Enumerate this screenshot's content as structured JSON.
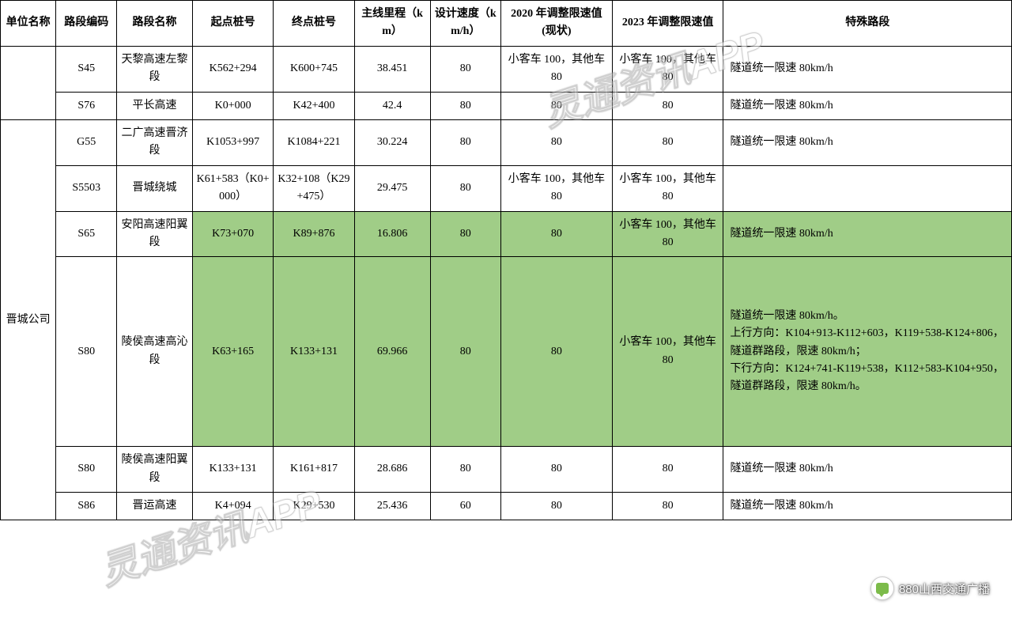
{
  "columns": {
    "unit": "单位名称",
    "code": "路段编码",
    "name": "路段名称",
    "start": "起点桩号",
    "end": "终点桩号",
    "length": "主线里程（km）",
    "design_speed": "设计速度（km/h）",
    "limit2020": "2020 年调整限速值(现状)",
    "limit2023": "2023 年调整限速值",
    "special": "特殊路段"
  },
  "widths_pct": [
    5.5,
    6.0,
    7.5,
    8.0,
    8.0,
    7.5,
    7.0,
    11.0,
    11.0,
    28.5
  ],
  "groups": [
    {
      "unit": "",
      "rows": [
        {
          "code": "S45",
          "name": "天黎高速左黎段",
          "start": "K562+294",
          "end": "K600+745",
          "length": "38.451",
          "design_speed": "80",
          "limit2020": "小客车 100，其他车 80",
          "limit2023": "小客车 100，其他车 80",
          "special": "隧道统一限速 80km/h",
          "highlight": []
        },
        {
          "code": "S76",
          "name": "平长高速",
          "start": "K0+000",
          "end": "K42+400",
          "length": "42.4",
          "design_speed": "80",
          "limit2020": "80",
          "limit2023": "80",
          "special": "隧道统一限速 80km/h",
          "highlight": []
        }
      ]
    },
    {
      "unit": "晋城公司",
      "rows": [
        {
          "code": "G55",
          "name": "二广高速晋济段",
          "start": "K1053+997",
          "end": "K1084+221",
          "length": "30.224",
          "design_speed": "80",
          "limit2020": "80",
          "limit2023": "80",
          "special": "隧道统一限速 80km/h",
          "highlight": []
        },
        {
          "code": "S5503",
          "name": "晋城绕城",
          "start": "K61+583（K0+000）",
          "end": "K32+108（K29+475）",
          "length": "29.475",
          "design_speed": "80",
          "limit2020": "小客车 100，其他车 80",
          "limit2023": "小客车 100，其他车 80",
          "special": "",
          "highlight": []
        },
        {
          "code": "S65",
          "name": "安阳高速阳翼段",
          "start": "K73+070",
          "end": "K89+876",
          "length": "16.806",
          "design_speed": "80",
          "limit2020": "80",
          "limit2023": "小客车 100，其他车 80",
          "special": "隧道统一限速 80km/h",
          "highlight": [
            "start",
            "end",
            "length",
            "design_speed",
            "limit2020",
            "limit2023",
            "special"
          ]
        },
        {
          "code": "S80",
          "name": "陵侯高速高沁段",
          "start": "K63+165",
          "end": "K133+131",
          "length": "69.966",
          "design_speed": "80",
          "limit2020": "80",
          "limit2023": "小客车 100，其他车 80",
          "special": "隧道统一限速 80km/h。\n上行方向：K104+913-K112+603，K119+538-K124+806，隧道群路段，限速 80km/h；\n下行方向：K124+741-K119+538，K112+583-K104+950，隧道群路段，限速 80km/h。",
          "tall": true,
          "highlight": [
            "start",
            "end",
            "length",
            "design_speed",
            "limit2020",
            "limit2023",
            "special"
          ]
        },
        {
          "code": "S80",
          "name": "陵侯高速阳翼段",
          "start": "K133+131",
          "end": "K161+817",
          "length": "28.686",
          "design_speed": "80",
          "limit2020": "80",
          "limit2023": "80",
          "special": "隧道统一限速 80km/h",
          "highlight": []
        },
        {
          "code": "S86",
          "name": "晋运高速",
          "start": "K4+094",
          "end": "K29+530",
          "length": "25.436",
          "design_speed": "60",
          "limit2020": "80",
          "limit2023": "80",
          "special": "隧道统一限速 80km/h",
          "highlight": []
        }
      ]
    }
  ],
  "watermark_text": "灵通资讯APP",
  "credit_text": "880山西交通广播",
  "colors": {
    "highlight": "#a0cd87",
    "border": "#000000",
    "background": "#ffffff"
  }
}
